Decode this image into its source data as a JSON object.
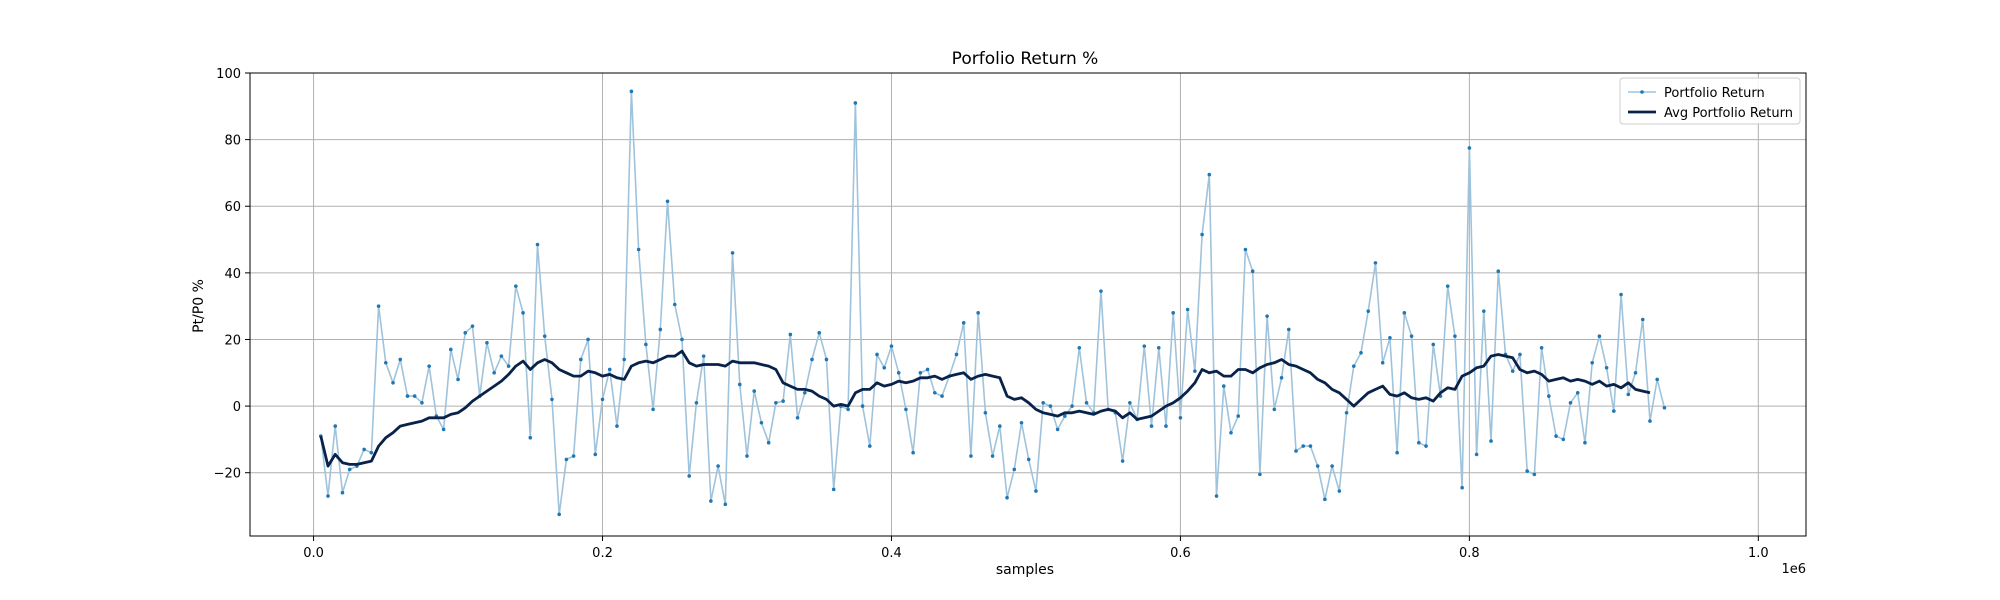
{
  "chart_data": {
    "type": "line",
    "title": "Porfolio Return %",
    "xlabel": "samples",
    "ylabel": "Pt/P0 %",
    "x_offset_label": "1e6",
    "xlim": [
      -0.044,
      1.033
    ],
    "ylim": [
      -39,
      100
    ],
    "xticks": [
      0.0,
      0.2,
      0.4,
      0.6,
      0.8,
      1.0
    ],
    "xtick_labels": [
      "0.0",
      "0.2",
      "0.4",
      "0.6",
      "0.8",
      "1.0"
    ],
    "yticks": [
      -20,
      0,
      20,
      40,
      60,
      80,
      100
    ],
    "ytick_labels": [
      "−20",
      "0",
      "20",
      "40",
      "60",
      "80",
      "100"
    ],
    "grid": true,
    "legend_position": "top-right",
    "x_start": 0.005,
    "x_step": 0.005,
    "series": [
      {
        "name": "Portfolio Return",
        "color": "#9fc3dc",
        "marker_color": "#1f77b4",
        "values": [
          -9,
          -27,
          -6,
          -26,
          -19,
          -18,
          -13,
          -14,
          30,
          13,
          7,
          14,
          3,
          3,
          1,
          12,
          -3,
          -7,
          17,
          8,
          22,
          24,
          3,
          19,
          10,
          15,
          12,
          36,
          28,
          -9.5,
          48.5,
          21,
          2,
          -32.5,
          -16,
          -15,
          14,
          20,
          -14.5,
          2,
          11,
          -6,
          14,
          94.5,
          47,
          18.5,
          -1,
          23,
          61.5,
          30.5,
          20,
          -21,
          1,
          15,
          -28.5,
          -18,
          -29.5,
          46,
          6.5,
          -15,
          4.5,
          -5,
          -11,
          1,
          1.5,
          21.5,
          -3.5,
          4,
          14,
          22,
          14,
          -25,
          0,
          -1,
          91,
          0,
          -12,
          15.5,
          11.5,
          18,
          10,
          -1,
          -14,
          10,
          11,
          4,
          3,
          9,
          15.5,
          25,
          -15,
          28,
          -2,
          -15,
          -6,
          -27.5,
          -19,
          -5,
          -16,
          -25.5,
          1,
          0,
          -7,
          -3,
          0,
          17.5,
          1,
          -2,
          34.5,
          -1,
          -2,
          -16.5,
          1,
          -4,
          18,
          -6,
          17.5,
          -6,
          28,
          -3.5,
          29,
          10.5,
          51.5,
          69.5,
          -27,
          6,
          -8,
          -3,
          47,
          40.5,
          -20.5,
          27,
          -1,
          8.5,
          23,
          -13.5,
          -12,
          -12,
          -18,
          -28,
          -18,
          -25.5,
          -2,
          12,
          16,
          28.5,
          43,
          13,
          20.5,
          -14,
          28,
          21,
          -11,
          -12,
          18.5,
          3,
          36,
          21,
          -24.5,
          77.5,
          -14.5,
          28.5,
          -10.5,
          40.5,
          15.5,
          10.5,
          15.5,
          -19.5,
          -20.5,
          17.5,
          3,
          -9,
          -10,
          1,
          4,
          -11,
          13,
          21,
          11.5,
          -1.5,
          33.5,
          3.5,
          10,
          26,
          -4.5,
          8,
          -0.5
        ]
      },
      {
        "name": "Avg Portfolio Return",
        "color": "#08224a",
        "values": [
          -9,
          -18,
          -14.5,
          -17,
          -17.5,
          -17.5,
          -17,
          -16.5,
          -12,
          -9.5,
          -8,
          -6,
          -5.5,
          -5,
          -4.5,
          -3.5,
          -3.5,
          -3.5,
          -2.5,
          -2,
          -0.5,
          1.5,
          3,
          4.5,
          6,
          7.5,
          9.5,
          12,
          13.5,
          11,
          13,
          14,
          13,
          11,
          10,
          9,
          9,
          10.5,
          10,
          9,
          9.5,
          8.5,
          8,
          12,
          13,
          13.5,
          13,
          14,
          15,
          15,
          16.5,
          13,
          12,
          12.5,
          12.5,
          12.5,
          12,
          13.5,
          13,
          13,
          13,
          12.5,
          12,
          11,
          7,
          6,
          5,
          5,
          4.5,
          3,
          2,
          0,
          0.5,
          0,
          4,
          5,
          5,
          7,
          6,
          6.5,
          7.5,
          7,
          7.5,
          8.5,
          8.5,
          9,
          8,
          9,
          9.5,
          10,
          8,
          9,
          9.5,
          9,
          8.5,
          3,
          2,
          2.5,
          1,
          -1,
          -2,
          -2.5,
          -3,
          -2,
          -2,
          -1.5,
          -2,
          -2.5,
          -1.5,
          -1,
          -1.5,
          -3.5,
          -2,
          -4,
          -3.5,
          -3,
          -1.5,
          0,
          1,
          2.5,
          4.5,
          7,
          11,
          10,
          10.5,
          9,
          9,
          11,
          11,
          10,
          11.5,
          12.5,
          13,
          14,
          12.5,
          12,
          11,
          10,
          8,
          7,
          5,
          4,
          2,
          0,
          2,
          4,
          5,
          6,
          3.5,
          3,
          4,
          2.5,
          2,
          2.5,
          1.5,
          4,
          5.5,
          5,
          9,
          10,
          11.5,
          12,
          15,
          15.5,
          15,
          14.5,
          11,
          10,
          10.5,
          9.5,
          7.5,
          8,
          8.5,
          7.5,
          8,
          7.5,
          6.5,
          7.5,
          6,
          6.5,
          5.5,
          7,
          5,
          4.5,
          4
        ]
      }
    ]
  }
}
